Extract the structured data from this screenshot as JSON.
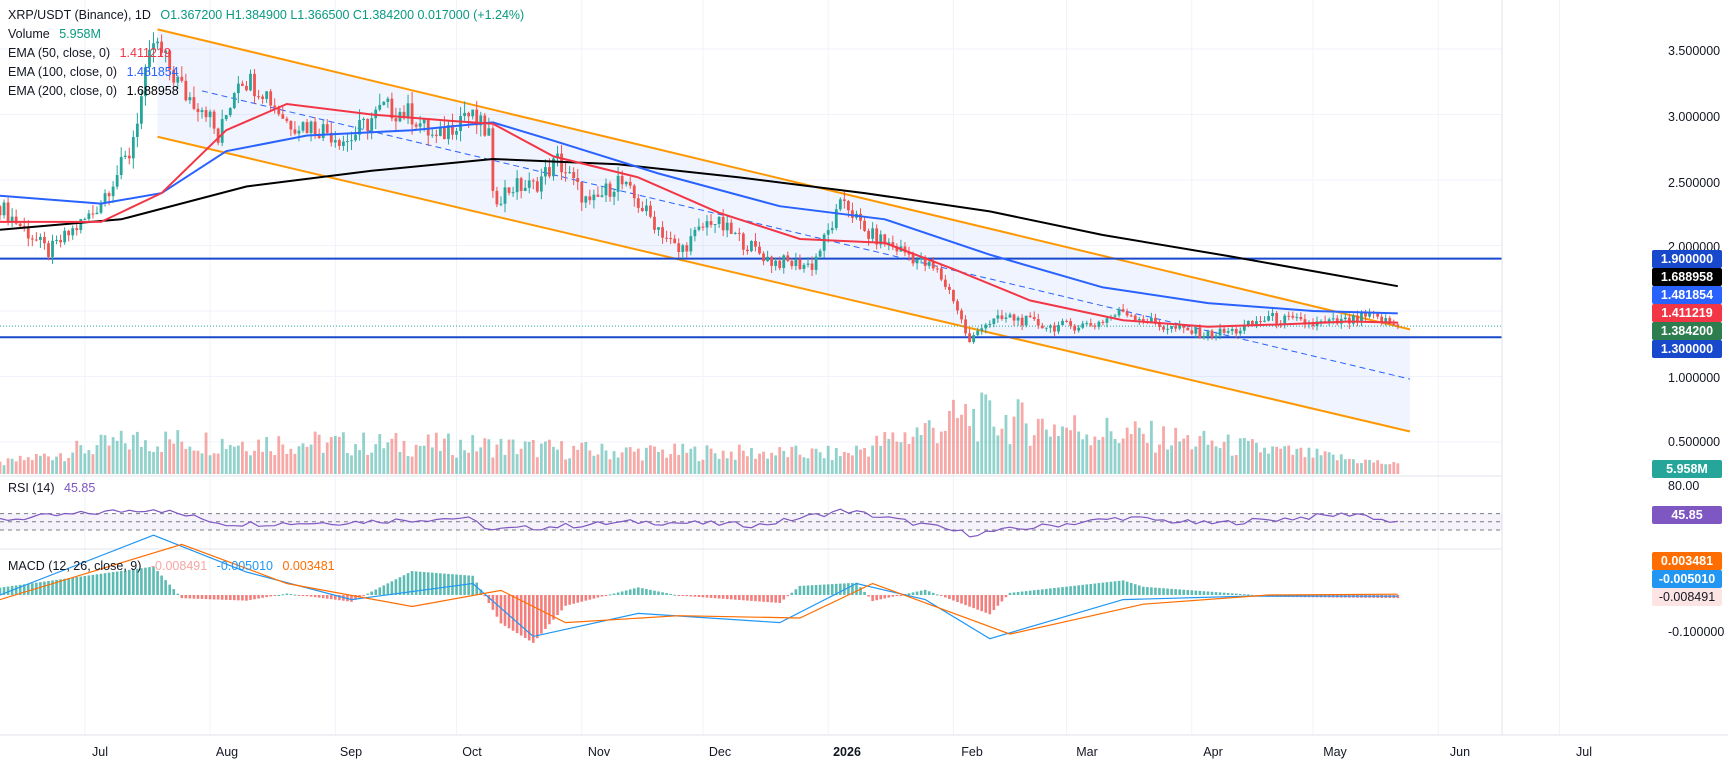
{
  "header": {
    "symbol": "XRP/USDT (Binance), 1D",
    "ohlc": "O1.367200  H1.384900  L1.366500  C1.384200  0.017000 (+1.24%)",
    "volume_label": "Volume",
    "volume_value": "5.958M",
    "ema50_label": "EMA (50, close, 0)",
    "ema50_value": "1.411219",
    "ema100_label": "EMA (100, close, 0)",
    "ema100_value": "1.481854",
    "ema200_label": "EMA (200, close, 0)",
    "ema200_value": "1.688958"
  },
  "rsi_legend": {
    "label": "RSI (14)",
    "value": "45.85"
  },
  "macd_legend": {
    "label": "MACD (12, 26, close, 9)",
    "hist": "-0.008491",
    "macd": "-0.005010",
    "signal": "0.003481"
  },
  "price_axis": [
    "3.500000",
    "3.000000",
    "2.500000",
    "2.000000",
    "1.000000",
    "0.500000"
  ],
  "price_pills": {
    "level_high": "1.900000",
    "ema200": "1.688958",
    "ema100": "1.481854",
    "ema50": "1.411219",
    "last": "1.384200",
    "level_low": "1.300000",
    "volume": "5.958M",
    "rsi": "45.85",
    "rsi_top": "80.00",
    "macd_signal": "0.003481",
    "macd_line": "-0.005010",
    "macd_hist": "-0.008491",
    "macd_axis": "-0.100000"
  },
  "time_axis": [
    "Jul",
    "Aug",
    "Sep",
    "Oct",
    "Nov",
    "Dec",
    "2026",
    "Feb",
    "Mar",
    "Apr",
    "May",
    "Jun",
    "Jul"
  ],
  "colors": {
    "up": "#26a69a",
    "down": "#ef5350",
    "ema50": "#f23645",
    "ema100": "#2962ff",
    "ema200": "#000000",
    "channel": "#ff9800",
    "level": "#1848cc",
    "rsi": "#7e57c2",
    "macd": "#2196f3",
    "signal": "#ff6d00"
  },
  "chart_data": {
    "type": "candlestick",
    "symbol": "XRP/USDT",
    "exchange": "Binance",
    "timeframe": "1D",
    "last_candle": {
      "open": 1.3672,
      "high": 1.3849,
      "low": 1.3665,
      "close": 1.3842,
      "change": 0.017,
      "change_pct": 1.24
    },
    "price_range": [
      0.35,
      3.75
    ],
    "horizontal_levels": [
      1.9,
      1.3
    ],
    "descending_channel": {
      "upper": [
        [
          "2025-07-19",
          3.65
        ],
        [
          "2026-05-20",
          1.38
        ]
      ],
      "lower": [
        [
          "2025-07-19",
          2.83
        ],
        [
          "2026-05-25",
          0.58
        ]
      ],
      "midline": [
        [
          "2025-07-30",
          3.18
        ],
        [
          "2026-05-25",
          0.98
        ]
      ]
    },
    "price_path": [
      [
        "2025-06-10",
        2.3
      ],
      [
        "2025-06-22",
        1.95
      ],
      [
        "2025-07-03",
        2.25
      ],
      [
        "2025-07-12",
        2.7
      ],
      [
        "2025-07-18",
        3.55
      ],
      [
        "2025-07-22",
        3.35
      ],
      [
        "2025-07-26",
        3.15
      ],
      [
        "2025-07-31",
        3.05
      ],
      [
        "2025-08-03",
        2.8
      ],
      [
        "2025-08-08",
        3.3
      ],
      [
        "2025-08-14",
        3.2
      ],
      [
        "2025-08-20",
        2.95
      ],
      [
        "2025-08-28",
        2.9
      ],
      [
        "2025-09-04",
        2.8
      ],
      [
        "2025-09-13",
        3.05
      ],
      [
        "2025-09-20",
        3.0
      ],
      [
        "2025-09-26",
        2.8
      ],
      [
        "2025-10-03",
        3.02
      ],
      [
        "2025-10-09",
        2.85
      ],
      [
        "2025-10-10",
        2.35
      ],
      [
        "2025-10-15",
        2.45
      ],
      [
        "2025-10-20",
        2.45
      ],
      [
        "2025-10-26",
        2.65
      ],
      [
        "2025-11-03",
        2.3
      ],
      [
        "2025-11-10",
        2.5
      ],
      [
        "2025-11-17",
        2.25
      ],
      [
        "2025-11-25",
        1.95
      ],
      [
        "2025-12-03",
        2.2
      ],
      [
        "2025-12-10",
        2.05
      ],
      [
        "2025-12-18",
        1.88
      ],
      [
        "2025-12-28",
        1.85
      ],
      [
        "2026-01-05",
        2.35
      ],
      [
        "2026-01-10",
        2.1
      ],
      [
        "2026-01-20",
        1.95
      ],
      [
        "2026-01-28",
        1.8
      ],
      [
        "2026-02-01",
        1.6
      ],
      [
        "2026-02-05",
        1.25
      ],
      [
        "2026-02-08",
        1.4
      ],
      [
        "2026-02-15",
        1.45
      ],
      [
        "2026-02-25",
        1.38
      ],
      [
        "2026-03-08",
        1.4
      ],
      [
        "2026-03-15",
        1.5
      ],
      [
        "2026-03-25",
        1.38
      ],
      [
        "2026-04-05",
        1.32
      ],
      [
        "2026-04-12",
        1.35
      ],
      [
        "2026-04-20",
        1.45
      ],
      [
        "2026-05-01",
        1.4
      ],
      [
        "2026-05-10",
        1.42
      ],
      [
        "2026-05-15",
        1.46
      ],
      [
        "2026-05-22",
        1.384
      ]
    ],
    "ema50": [
      [
        "2025-06-10",
        2.18
      ],
      [
        "2025-07-05",
        2.18
      ],
      [
        "2025-07-20",
        2.4
      ],
      [
        "2025-08-05",
        2.88
      ],
      [
        "2025-08-20",
        3.08
      ],
      [
        "2025-09-10",
        3.0
      ],
      [
        "2025-09-30",
        2.95
      ],
      [
        "2025-10-10",
        2.93
      ],
      [
        "2025-10-25",
        2.68
      ],
      [
        "2025-11-15",
        2.52
      ],
      [
        "2025-12-05",
        2.25
      ],
      [
        "2025-12-25",
        2.05
      ],
      [
        "2026-01-15",
        2.02
      ],
      [
        "2026-02-01",
        1.82
      ],
      [
        "2026-02-20",
        1.58
      ],
      [
        "2026-03-15",
        1.43
      ],
      [
        "2026-04-05",
        1.38
      ],
      [
        "2026-04-25",
        1.4
      ],
      [
        "2026-05-10",
        1.42
      ],
      [
        "2026-05-22",
        1.411219
      ]
    ],
    "ema100": [
      [
        "2025-06-10",
        2.38
      ],
      [
        "2025-07-05",
        2.32
      ],
      [
        "2025-07-20",
        2.4
      ],
      [
        "2025-08-05",
        2.72
      ],
      [
        "2025-08-25",
        2.84
      ],
      [
        "2025-09-20",
        2.88
      ],
      [
        "2025-10-10",
        2.94
      ],
      [
        "2025-10-25",
        2.8
      ],
      [
        "2025-11-20",
        2.55
      ],
      [
        "2025-12-20",
        2.3
      ],
      [
        "2026-01-15",
        2.2
      ],
      [
        "2026-02-10",
        1.93
      ],
      [
        "2026-03-10",
        1.68
      ],
      [
        "2026-04-05",
        1.56
      ],
      [
        "2026-05-01",
        1.5
      ],
      [
        "2026-05-22",
        1.481854
      ]
    ],
    "ema200": [
      [
        "2025-06-10",
        2.12
      ],
      [
        "2025-07-10",
        2.2
      ],
      [
        "2025-08-10",
        2.45
      ],
      [
        "2025-09-10",
        2.57
      ],
      [
        "2025-10-10",
        2.66
      ],
      [
        "2025-11-10",
        2.62
      ],
      [
        "2025-12-10",
        2.52
      ],
      [
        "2026-01-10",
        2.4
      ],
      [
        "2026-02-10",
        2.26
      ],
      [
        "2026-03-10",
        2.08
      ],
      [
        "2026-04-10",
        1.92
      ],
      [
        "2026-05-22",
        1.688958
      ]
    ],
    "volume": {
      "unit": "M",
      "last": 5.958,
      "pattern": [
        [
          "2025-06-10",
          0.12
        ],
        [
          "2025-07-13",
          0.55
        ],
        [
          "2025-07-18",
          0.55
        ],
        [
          "2025-10-10",
          0.45
        ],
        [
          "2025-11-05",
          0.35
        ],
        [
          "2026-01-05",
          0.3
        ],
        [
          "2026-02-05",
          1.0
        ],
        [
          "2026-05-22",
          0.1
        ]
      ]
    },
    "rsi": {
      "period": 14,
      "last": 45.85,
      "levels": [
        70,
        50,
        30
      ],
      "path": [
        [
          "2025-06-10",
          55
        ],
        [
          "2025-07-18",
          82
        ],
        [
          "2025-08-05",
          45
        ],
        [
          "2025-09-01",
          48
        ],
        [
          "2025-10-03",
          60
        ],
        [
          "2025-10-10",
          30
        ],
        [
          "2025-11-15",
          50
        ],
        [
          "2025-12-15",
          42
        ],
        [
          "2026-01-05",
          78
        ],
        [
          "2026-01-25",
          42
        ],
        [
          "2026-02-05",
          20
        ],
        [
          "2026-03-15",
          60
        ],
        [
          "2026-04-05",
          45
        ],
        [
          "2026-05-12",
          70
        ],
        [
          "2026-05-22",
          45.85
        ]
      ]
    },
    "macd": {
      "params": [
        12,
        26,
        9
      ],
      "last": {
        "histogram": -0.008491,
        "macd": -0.00501,
        "signal": 0.003481
      },
      "macd_path": [
        [
          "2025-06-10",
          0.0
        ],
        [
          "2025-07-18",
          0.26
        ],
        [
          "2025-08-10",
          0.1
        ],
        [
          "2025-09-05",
          -0.02
        ],
        [
          "2025-10-05",
          0.05
        ],
        [
          "2025-10-20",
          -0.18
        ],
        [
          "2025-11-15",
          -0.08
        ],
        [
          "2025-12-20",
          -0.12
        ],
        [
          "2026-01-08",
          0.05
        ],
        [
          "2026-01-25",
          -0.02
        ],
        [
          "2026-02-10",
          -0.19
        ],
        [
          "2026-03-15",
          -0.02
        ],
        [
          "2026-04-15",
          -0.005
        ],
        [
          "2026-05-22",
          -0.00501
        ]
      ],
      "signal_path": [
        [
          "2025-06-10",
          -0.02
        ],
        [
          "2025-07-25",
          0.22
        ],
        [
          "2025-08-20",
          0.05
        ],
        [
          "2025-09-20",
          -0.05
        ],
        [
          "2025-10-12",
          0.02
        ],
        [
          "2025-10-28",
          -0.12
        ],
        [
          "2025-11-25",
          -0.09
        ],
        [
          "2025-12-25",
          -0.1
        ],
        [
          "2026-01-12",
          0.05
        ],
        [
          "2026-02-15",
          -0.17
        ],
        [
          "2026-03-20",
          -0.04
        ],
        [
          "2026-04-20",
          0.0
        ],
        [
          "2026-05-22",
          0.003481
        ]
      ]
    }
  }
}
